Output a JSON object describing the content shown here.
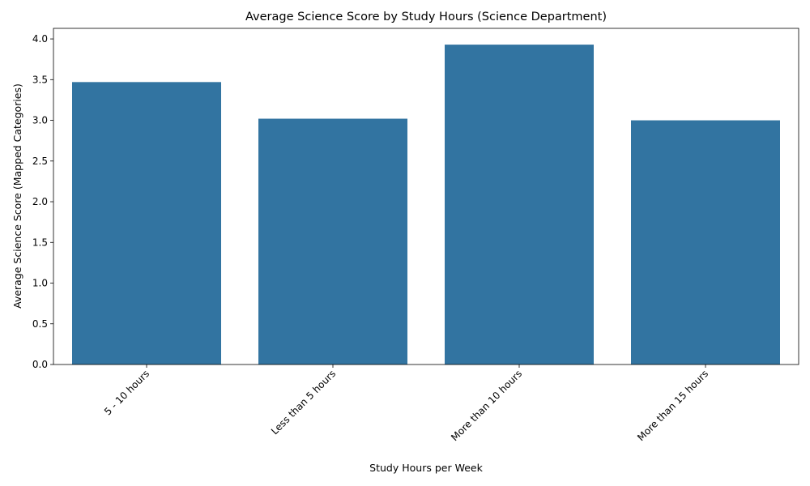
{
  "chart_data": {
    "type": "bar",
    "title": "Average Science Score by Study Hours (Science Department)",
    "xlabel": "Study Hours per Week",
    "ylabel": "Average Science Score (Mapped Categories)",
    "categories": [
      "5 - 10 hours",
      "Less than 5 hours",
      "More than 10 hours",
      "More than 15 hours"
    ],
    "values": [
      3.47,
      3.02,
      3.93,
      3.0
    ],
    "ylim": [
      0,
      4.13
    ],
    "yticks": [
      "0.0",
      "0.5",
      "1.0",
      "1.5",
      "2.0",
      "2.5",
      "3.0",
      "3.5",
      "4.0"
    ],
    "grid": false,
    "bar_color": "#3274a1"
  }
}
